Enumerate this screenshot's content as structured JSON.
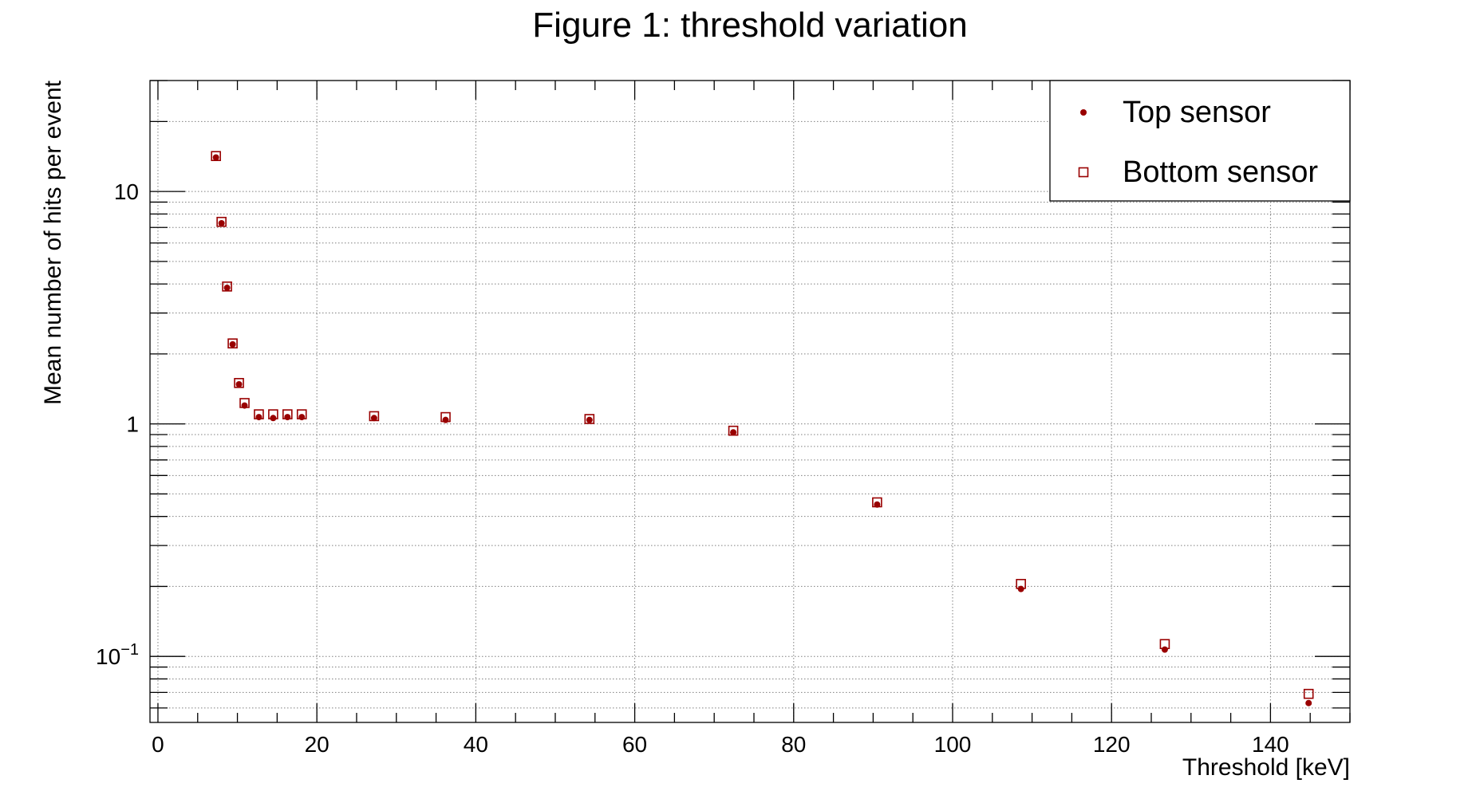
{
  "colors": {
    "marker": "#990000",
    "axis": "#000000",
    "grid": "#7f7f7f",
    "background": "#ffffff"
  },
  "chart_data": {
    "type": "scatter",
    "title": "Figure 1: threshold variation",
    "xlabel": "Threshold [keV]",
    "ylabel": "Mean number of hits per event",
    "xlim": [
      -1,
      150
    ],
    "ylim": [
      0.052,
      30
    ],
    "yscale": "log",
    "grid": true,
    "legend_position": "top-right",
    "x_ticks": [
      0,
      20,
      40,
      60,
      80,
      100,
      120,
      140
    ],
    "x_tick_labels": [
      "0",
      "20",
      "40",
      "60",
      "80",
      "100",
      "120",
      "140"
    ],
    "y_ticks": [
      {
        "value": 10,
        "base": "10",
        "exp": ""
      },
      {
        "value": 1,
        "base": "1",
        "exp": ""
      },
      {
        "value": 0.1,
        "base": "10",
        "exp": "−1"
      }
    ],
    "series": [
      {
        "name": "Top sensor",
        "marker": "filled-circle",
        "x": [
          7.3,
          8.0,
          8.7,
          9.4,
          10.2,
          10.9,
          12.7,
          14.5,
          16.3,
          18.1,
          27.2,
          36.2,
          54.3,
          72.4,
          90.5,
          108.6,
          126.7,
          144.8
        ],
        "y": [
          14.0,
          7.3,
          3.85,
          2.2,
          1.48,
          1.2,
          1.07,
          1.06,
          1.07,
          1.07,
          1.06,
          1.04,
          1.04,
          0.92,
          0.45,
          0.195,
          0.107,
          0.063
        ]
      },
      {
        "name": "Bottom sensor",
        "marker": "open-square",
        "x": [
          7.3,
          8.0,
          8.7,
          9.4,
          10.2,
          10.9,
          12.7,
          14.5,
          16.3,
          18.1,
          27.2,
          36.2,
          54.3,
          72.4,
          90.5,
          108.6,
          126.7,
          144.8
        ],
        "y": [
          14.2,
          7.4,
          3.9,
          2.22,
          1.5,
          1.23,
          1.1,
          1.1,
          1.1,
          1.1,
          1.08,
          1.07,
          1.05,
          0.935,
          0.46,
          0.205,
          0.113,
          0.069
        ]
      }
    ]
  }
}
